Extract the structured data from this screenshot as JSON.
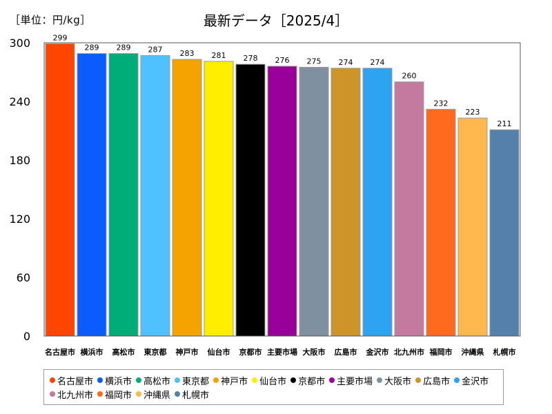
{
  "unit_label": "［単位：円/kg］",
  "chart_data": {
    "type": "bar",
    "title": "最新データ［2025/4］",
    "categories": [
      "名古屋市",
      "横浜市",
      "高松市",
      "東京都",
      "神戸市",
      "仙台市",
      "京都市",
      "主要市場",
      "大阪市",
      "広島市",
      "金沢市",
      "北九州市",
      "福岡市",
      "沖縄県",
      "札幌市"
    ],
    "values": [
      299,
      289,
      289,
      287,
      283,
      281,
      278,
      276,
      275,
      274,
      274,
      260,
      232,
      223,
      211
    ],
    "colors": [
      "#FF4500",
      "#0A5CFF",
      "#00AD78",
      "#4FC1FF",
      "#F5A300",
      "#FFEE00",
      "#000000",
      "#990099",
      "#8090A0",
      "#CC9429",
      "#2EA3F0",
      "#C47A9E",
      "#FF6A1F",
      "#FFB84D",
      "#5381AC"
    ],
    "ylim": [
      0,
      300
    ],
    "yticks": [
      0,
      60,
      120,
      180,
      240,
      300
    ],
    "legend_position": "bottom",
    "grid": false
  }
}
